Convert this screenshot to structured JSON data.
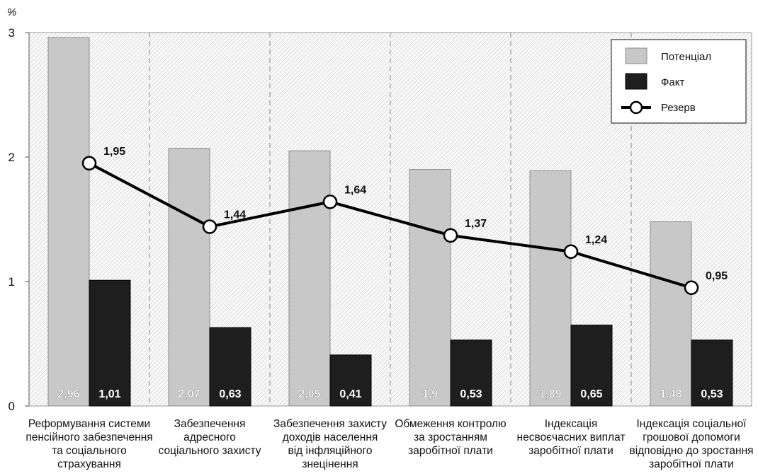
{
  "chart_data": {
    "type": "bar",
    "unit_label": "%",
    "ylim": [
      0,
      3
    ],
    "yticks": [
      0,
      1,
      2,
      3
    ],
    "grid": false,
    "legend_position": "top-right",
    "categories": [
      [
        "Реформування системи",
        "пенсійного забезпечення",
        "та соціального",
        "страхування"
      ],
      [
        "Забезпечення",
        "адресного",
        "соціального захисту"
      ],
      [
        "Забезпечення захисту",
        "доходів населення",
        "від інфляційного",
        "знецінення"
      ],
      [
        "Обмеження контролю",
        "за зростанням",
        "заробітної плати"
      ],
      [
        "Індексація",
        "несвоєчасних виплат",
        "заробітної плати"
      ],
      [
        "Індексація соціальної",
        "грошової допомоги",
        "відповідно до зростання",
        "заробітної плати"
      ]
    ],
    "series": [
      {
        "name": "Потенціал",
        "kind": "bar",
        "color": "#c8c8c8",
        "values": [
          2.96,
          2.07,
          2.05,
          1.9,
          1.89,
          1.48
        ],
        "labels": [
          "2,96",
          "2,07",
          "2,05",
          "1,9",
          "1,89",
          "1,48"
        ]
      },
      {
        "name": "Факт",
        "kind": "bar",
        "color": "#1e1e1e",
        "values": [
          1.01,
          0.63,
          0.41,
          0.53,
          0.65,
          0.53
        ],
        "labels": [
          "1,01",
          "0,63",
          "0,41",
          "0,53",
          "0,65",
          "0,53"
        ]
      },
      {
        "name": "Резерв",
        "kind": "line",
        "color": "#000000",
        "values": [
          1.95,
          1.44,
          1.64,
          1.37,
          1.24,
          0.95
        ],
        "labels": [
          "1,95",
          "1,44",
          "1,64",
          "1,37",
          "1,24",
          "0,95"
        ]
      }
    ]
  }
}
